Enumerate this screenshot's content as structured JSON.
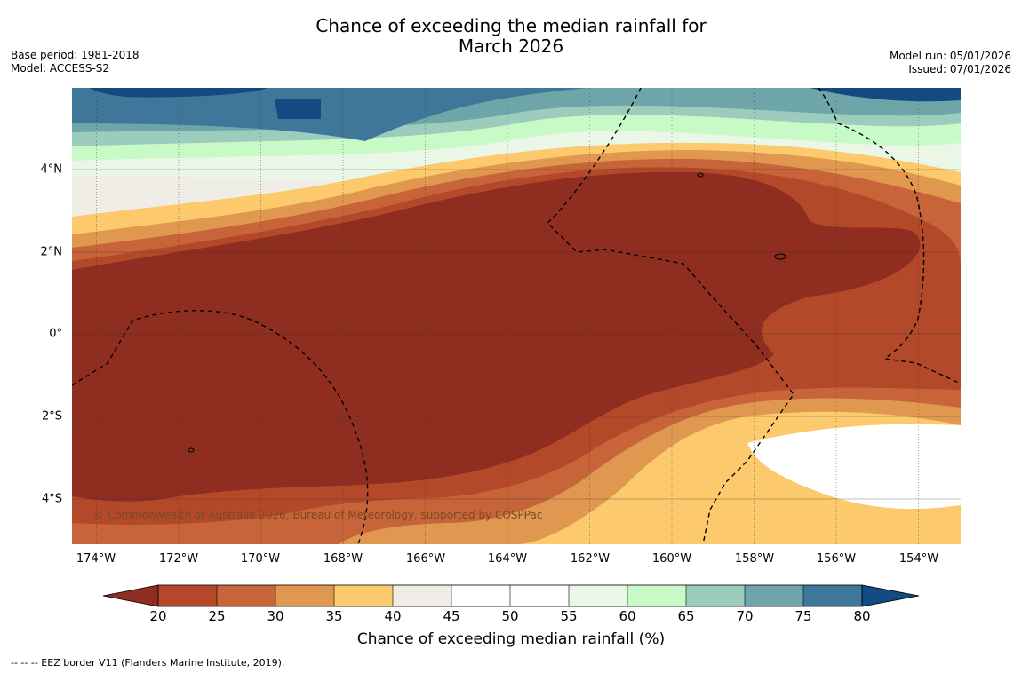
{
  "title_line1": "Chance of exceeding the median rainfall for",
  "title_line2": "March 2026",
  "base_period": "Base period: 1981-2018",
  "model": "Model: ACCESS-S2",
  "model_run": "Model run: 05/01/2026",
  "issued": "Issued: 07/01/2026",
  "lat_labels": [
    "4°N",
    "2°N",
    "0°",
    "2°S",
    "4°S"
  ],
  "lon_labels": [
    "174°W",
    "172°W",
    "170°W",
    "168°W",
    "166°W",
    "164°W",
    "162°W",
    "160°W",
    "158°W",
    "156°W",
    "154°W"
  ],
  "copyright": "© Commonwealth of Australia 2026, Bureau of Meteorology, supported by COSPPac",
  "colorbar": {
    "ticks": [
      "20",
      "25",
      "30",
      "35",
      "40",
      "45",
      "50",
      "55",
      "60",
      "65",
      "70",
      "75",
      "80"
    ],
    "title": "Chance of exceeding median rainfall (%)",
    "colors": {
      "below_20": "#8f2e20",
      "b20_25": "#b4492a",
      "b25_30": "#c8643a",
      "b30_35": "#e09850",
      "b35_40": "#fcca6c",
      "b40_45": "#f0ece6",
      "b45_50": "#ffffff",
      "b50_55": "#ffffff",
      "b55_60": "#eaf7e6",
      "b60_65": "#c8fac8",
      "b65_70": "#9ccdbc",
      "b70_75": "#6ea5a8",
      "b75_80": "#3f779a",
      "above_80": "#134a82"
    }
  },
  "legend_note": "-- -- -- EEZ border V11 (Flanders Marine Institute, 2019)."
}
